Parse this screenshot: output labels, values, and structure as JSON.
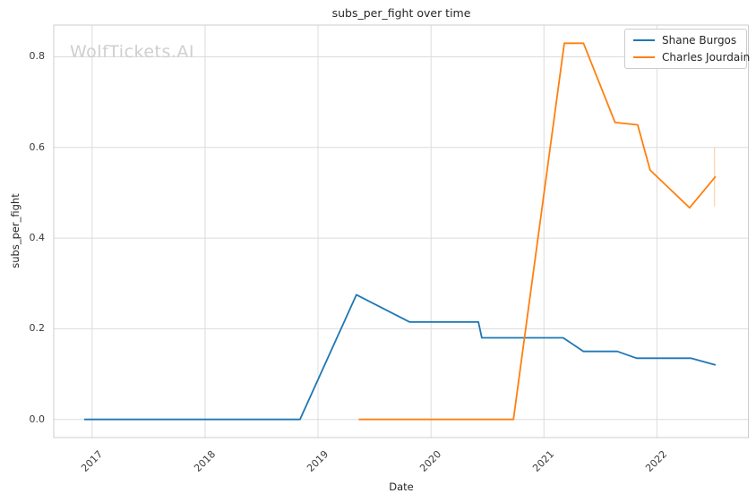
{
  "watermark": "WolfTickets.AI",
  "chart_data": {
    "type": "line",
    "title": "subs_per_fight over time",
    "xlabel": "Date",
    "ylabel": "subs_per_fight",
    "grid": true,
    "legend_position": "upper right",
    "xlim": [
      2016.66,
      2022.81
    ],
    "ylim": [
      -0.04,
      0.87
    ],
    "xticks": [
      {
        "value": 2017,
        "label": "2017"
      },
      {
        "value": 2018,
        "label": "2018"
      },
      {
        "value": 2019,
        "label": "2019"
      },
      {
        "value": 2020,
        "label": "2020"
      },
      {
        "value": 2021,
        "label": "2021"
      },
      {
        "value": 2022,
        "label": "2022"
      }
    ],
    "yticks": [
      {
        "value": 0.0,
        "label": "0.0"
      },
      {
        "value": 0.2,
        "label": "0.2"
      },
      {
        "value": 0.4,
        "label": "0.4"
      },
      {
        "value": 0.6,
        "label": "0.6"
      },
      {
        "value": 0.8,
        "label": "0.8"
      }
    ],
    "colors": {
      "background": "#ffffff",
      "grid": "#dcdcdc",
      "spine": "#cccccc",
      "text": "#262626",
      "tick_text": "#3b3b3b",
      "watermark": "#cfcfcf",
      "shane_burgos": "#1f77b4",
      "charles_jourdain": "#ff7f0e"
    },
    "series": [
      {
        "name": "Shane Burgos",
        "color": "#1f77b4",
        "points": [
          [
            2016.93,
            0.0
          ],
          [
            2018.84,
            0.0
          ],
          [
            2019.34,
            0.275
          ],
          [
            2019.81,
            0.215
          ],
          [
            2020.42,
            0.215
          ],
          [
            2020.45,
            0.18
          ],
          [
            2021.17,
            0.18
          ],
          [
            2021.35,
            0.15
          ],
          [
            2021.65,
            0.15
          ],
          [
            2021.82,
            0.135
          ],
          [
            2022.3,
            0.135
          ],
          [
            2022.52,
            0.12
          ]
        ]
      },
      {
        "name": "Charles Jourdain",
        "color": "#ff7f0e",
        "points": [
          [
            2019.36,
            0.0
          ],
          [
            2020.73,
            0.0
          ],
          [
            2021.18,
            0.83
          ],
          [
            2021.35,
            0.83
          ],
          [
            2021.63,
            0.655
          ],
          [
            2021.83,
            0.65
          ],
          [
            2021.94,
            0.55
          ],
          [
            2022.29,
            0.467
          ],
          [
            2022.52,
            0.536
          ]
        ],
        "end_bar": {
          "x": 2022.51,
          "y_min": 0.47,
          "y_max": 0.6
        }
      }
    ]
  }
}
